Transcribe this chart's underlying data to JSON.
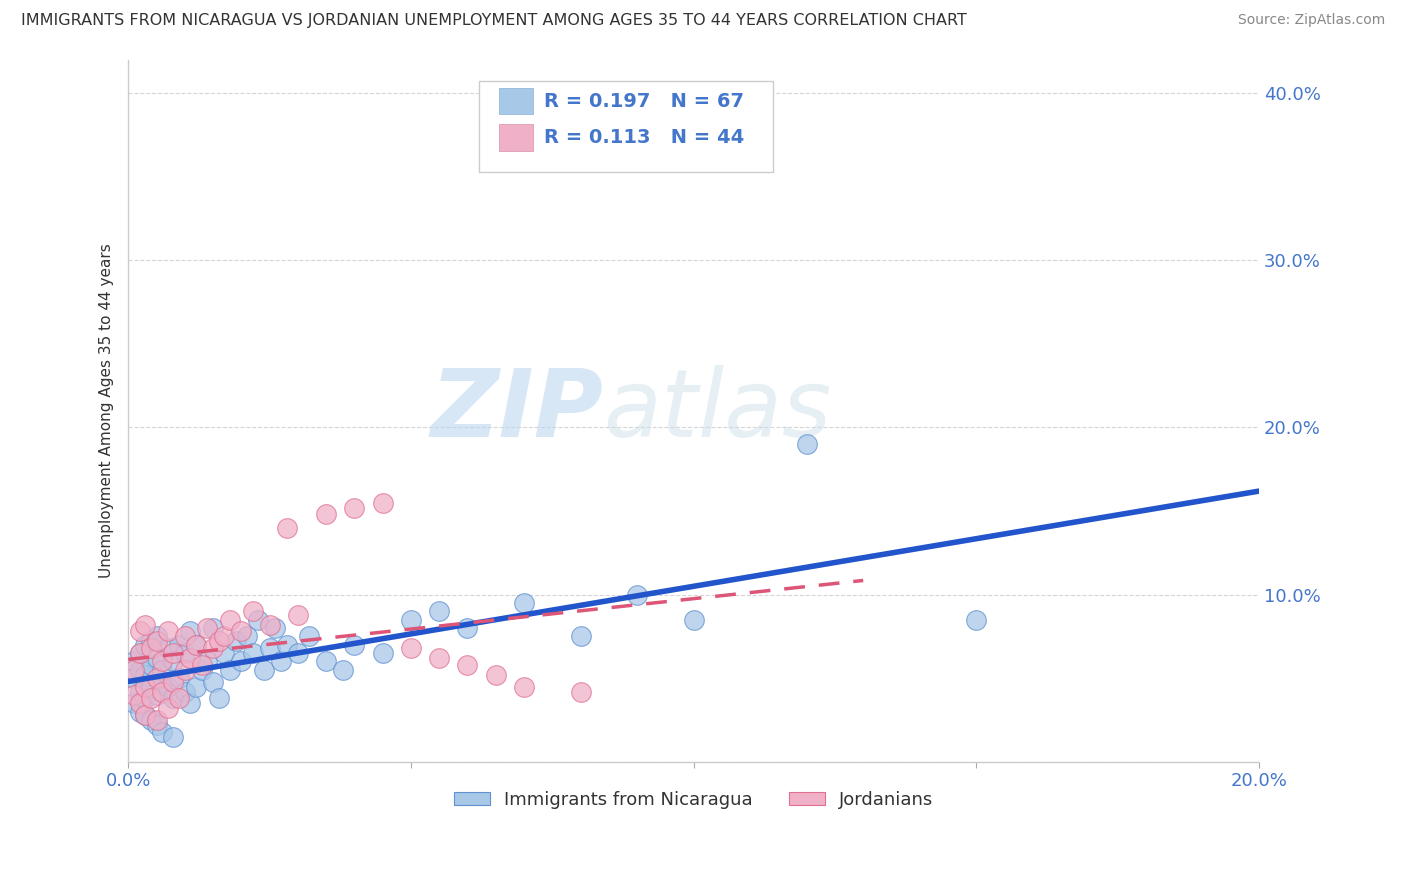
{
  "title": "IMMIGRANTS FROM NICARAGUA VS JORDANIAN UNEMPLOYMENT AMONG AGES 35 TO 44 YEARS CORRELATION CHART",
  "source": "Source: ZipAtlas.com",
  "ylabel": "Unemployment Among Ages 35 to 44 years",
  "xlim": [
    0.0,
    0.2
  ],
  "ylim": [
    0.0,
    0.42
  ],
  "x_ticks": [
    0.0,
    0.05,
    0.1,
    0.15,
    0.2
  ],
  "y_ticks": [
    0.0,
    0.1,
    0.2,
    0.3,
    0.4
  ],
  "series1_color": "#a8c8e8",
  "series2_color": "#f0b0c8",
  "series1_edge": "#6090d0",
  "series2_edge": "#e07090",
  "line1_color": "#2255cc",
  "line2_color": "#dd5577",
  "R1": 0.197,
  "N1": 67,
  "R2": 0.113,
  "N2": 44,
  "legend_label1": "Immigrants from Nicaragua",
  "legend_label2": "Jordanians",
  "watermark_zip": "ZIP",
  "watermark_atlas": "atlas",
  "background_color": "#ffffff",
  "grid_color": "#cccccc",
  "tick_color": "#4477cc",
  "title_color": "#333333",
  "ylabel_color": "#333333",
  "source_color": "#888888",
  "legend_text_color": "#4477cc",
  "series1_x": [
    0.001,
    0.001,
    0.001,
    0.002,
    0.002,
    0.002,
    0.002,
    0.003,
    0.003,
    0.003,
    0.003,
    0.004,
    0.004,
    0.004,
    0.004,
    0.005,
    0.005,
    0.005,
    0.005,
    0.006,
    0.006,
    0.006,
    0.007,
    0.007,
    0.008,
    0.008,
    0.008,
    0.009,
    0.009,
    0.01,
    0.01,
    0.011,
    0.011,
    0.012,
    0.012,
    0.013,
    0.014,
    0.015,
    0.015,
    0.016,
    0.017,
    0.018,
    0.019,
    0.02,
    0.021,
    0.022,
    0.023,
    0.024,
    0.025,
    0.026,
    0.027,
    0.028,
    0.03,
    0.032,
    0.035,
    0.038,
    0.04,
    0.045,
    0.05,
    0.055,
    0.06,
    0.07,
    0.08,
    0.09,
    0.1,
    0.12,
    0.15
  ],
  "series1_y": [
    0.05,
    0.035,
    0.06,
    0.042,
    0.055,
    0.03,
    0.065,
    0.038,
    0.052,
    0.028,
    0.07,
    0.045,
    0.058,
    0.025,
    0.072,
    0.04,
    0.062,
    0.022,
    0.075,
    0.048,
    0.055,
    0.018,
    0.045,
    0.068,
    0.038,
    0.06,
    0.015,
    0.05,
    0.07,
    0.042,
    0.065,
    0.035,
    0.078,
    0.045,
    0.07,
    0.055,
    0.06,
    0.048,
    0.08,
    0.038,
    0.065,
    0.055,
    0.072,
    0.06,
    0.075,
    0.065,
    0.085,
    0.055,
    0.068,
    0.08,
    0.06,
    0.07,
    0.065,
    0.075,
    0.06,
    0.055,
    0.07,
    0.065,
    0.085,
    0.09,
    0.08,
    0.095,
    0.075,
    0.1,
    0.085,
    0.19,
    0.085
  ],
  "series2_x": [
    0.001,
    0.001,
    0.002,
    0.002,
    0.002,
    0.003,
    0.003,
    0.003,
    0.004,
    0.004,
    0.005,
    0.005,
    0.005,
    0.006,
    0.006,
    0.007,
    0.007,
    0.008,
    0.008,
    0.009,
    0.01,
    0.01,
    0.011,
    0.012,
    0.013,
    0.014,
    0.015,
    0.016,
    0.017,
    0.018,
    0.02,
    0.022,
    0.025,
    0.028,
    0.03,
    0.035,
    0.04,
    0.045,
    0.05,
    0.055,
    0.06,
    0.065,
    0.07,
    0.08
  ],
  "series2_y": [
    0.055,
    0.04,
    0.065,
    0.035,
    0.078,
    0.045,
    0.028,
    0.082,
    0.038,
    0.068,
    0.05,
    0.025,
    0.072,
    0.042,
    0.06,
    0.032,
    0.078,
    0.048,
    0.065,
    0.038,
    0.055,
    0.075,
    0.062,
    0.07,
    0.058,
    0.08,
    0.068,
    0.072,
    0.075,
    0.085,
    0.078,
    0.09,
    0.082,
    0.14,
    0.088,
    0.148,
    0.152,
    0.155,
    0.068,
    0.062,
    0.058,
    0.052,
    0.045,
    0.042
  ]
}
